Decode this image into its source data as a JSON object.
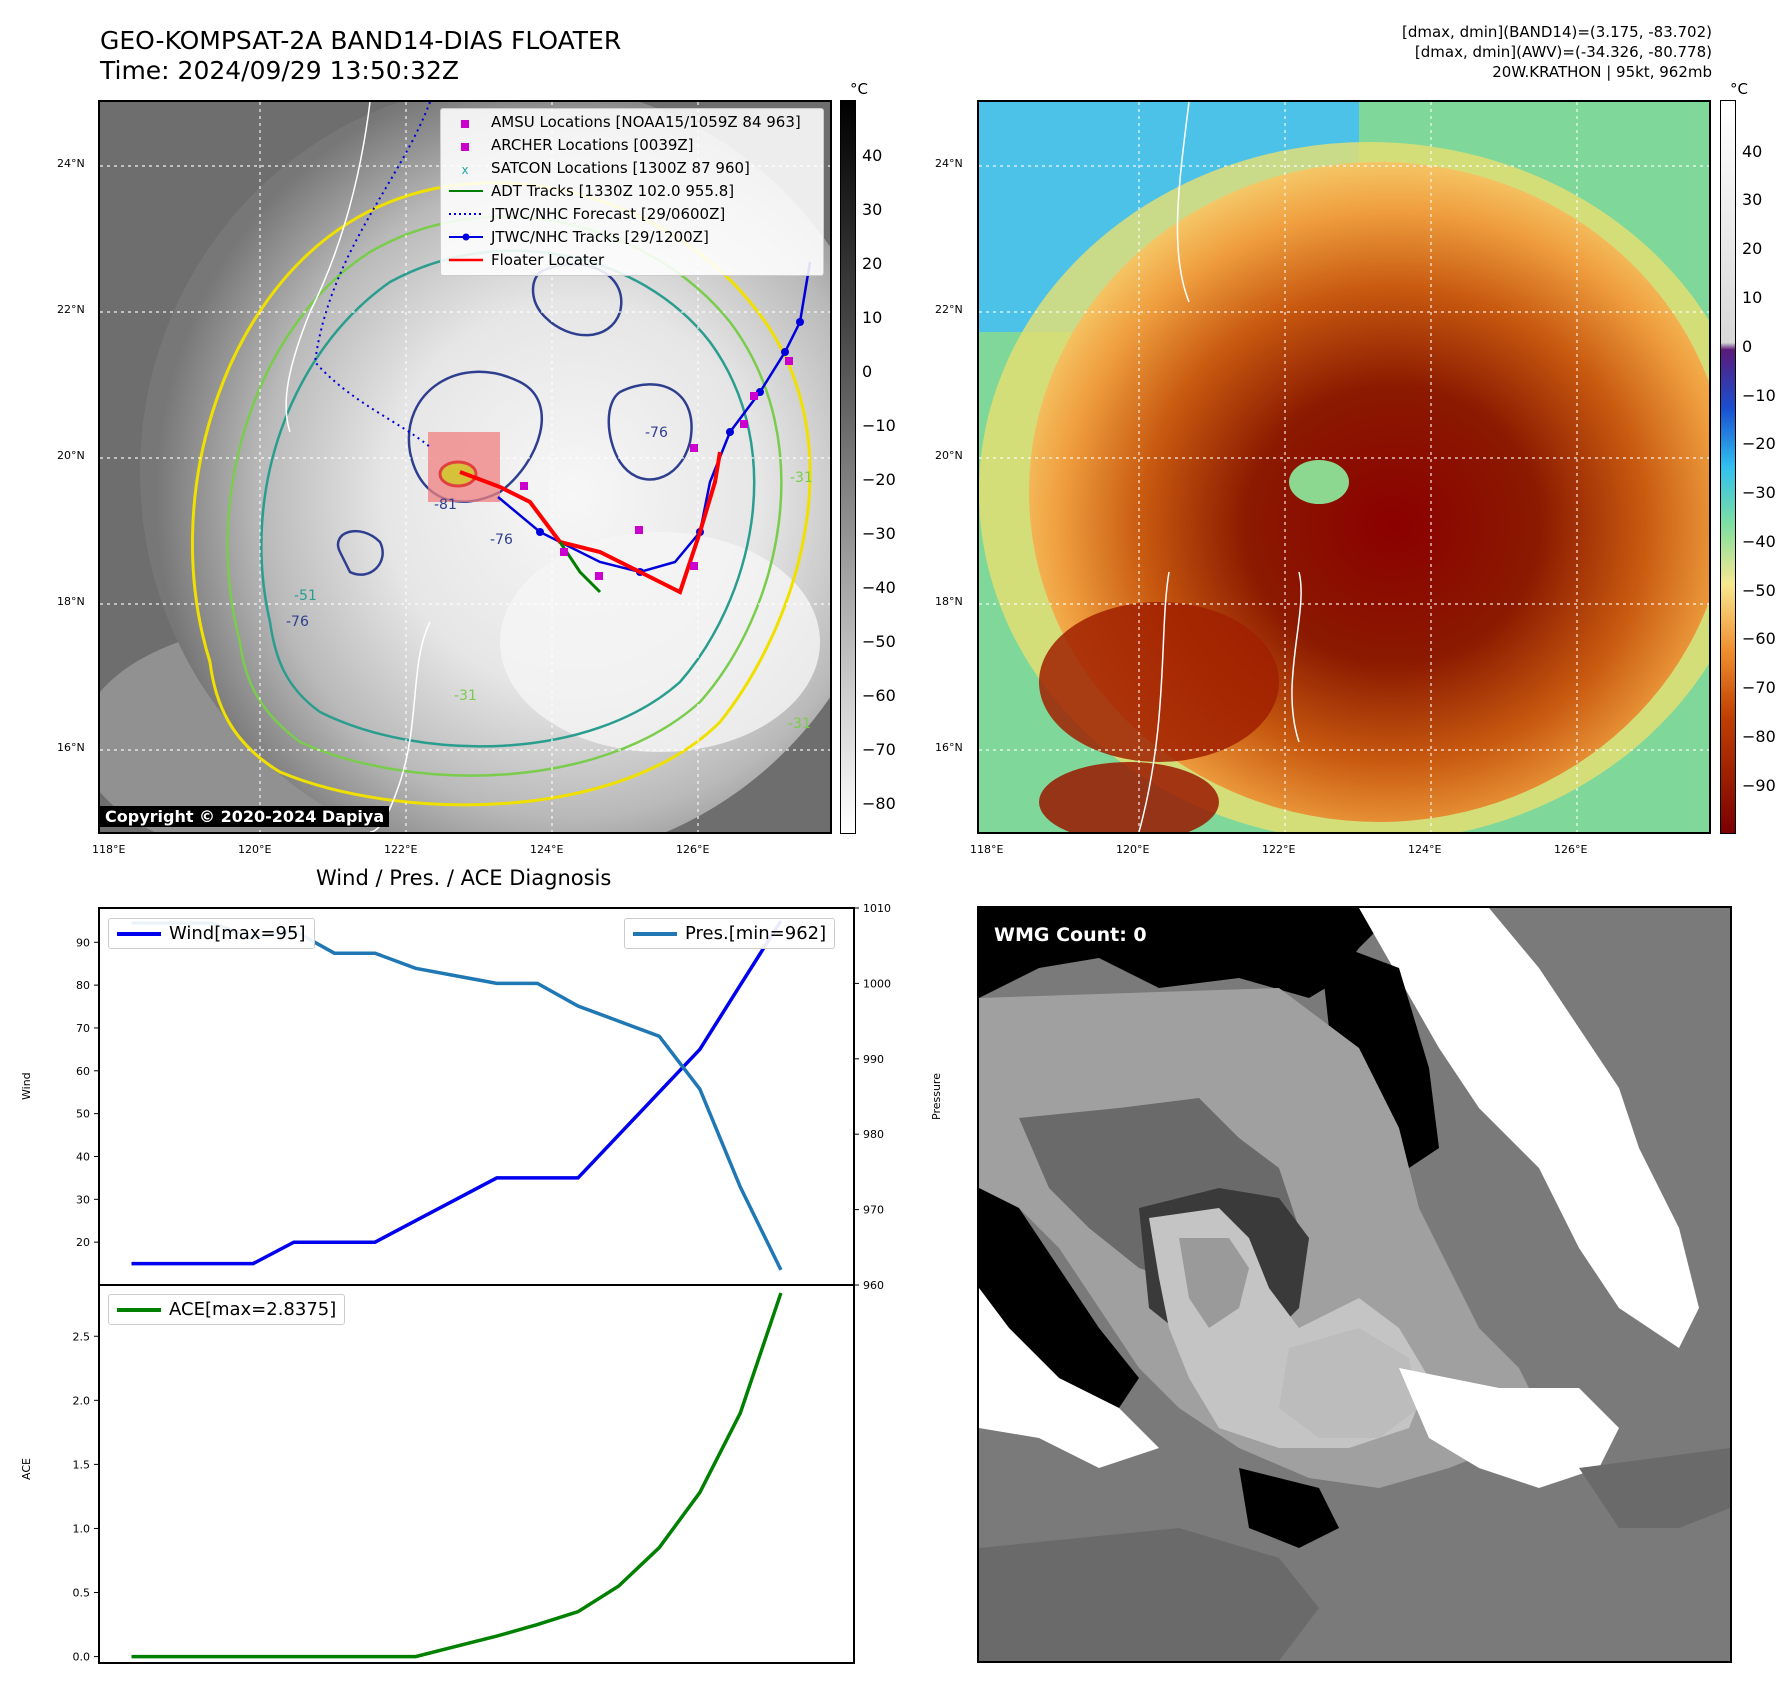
{
  "header": {
    "title_line1": "GEO-KOMPSAT-2A BAND14-DIAS FLOATER",
    "title_line2": "Time: 2024/09/29 13:50:32Z",
    "info_line1": "[dmax, dmin](BAND14)=(3.175, -83.702)",
    "info_line2": "[dmax, dmin](AWV)=(-34.326, -80.778)",
    "info_line3": "20W.KRATHON | 95kt, 962mb"
  },
  "map": {
    "lon_ticks": [
      "118°E",
      "120°E",
      "122°E",
      "124°E",
      "126°E"
    ],
    "lat_ticks": [
      "24°N",
      "22°N",
      "20°N",
      "18°N",
      "16°N"
    ],
    "copyright": "Copyright © 2020-2024 Dapiya",
    "contour_labels": [
      "-81",
      "-76",
      "-76",
      "-76",
      "-51",
      "-31",
      "-31",
      "-31"
    ],
    "colors": {
      "ocean_gray": "#6f6f6f",
      "cloud_white": "#f2f2f2",
      "track_blue": "#0000dd",
      "locator_red": "#ff0000",
      "adt_green": "#007f00"
    }
  },
  "legend": {
    "amsu": "AMSU Locations [NOAA15/1059Z 84 963]",
    "archer": "ARCHER Locations [0039Z]",
    "satcon": "SATCON Locations [1300Z 87 960]",
    "adt": "ADT Tracks [1330Z 102.0 955.8]",
    "forecast": "JTWC/NHC Forecast [29/0600Z]",
    "tracks": "JTWC/NHC Tracks [29/1200Z]",
    "floater": "Floater Locater"
  },
  "colorbar_left": {
    "unit": "°C",
    "ticks": [
      "40",
      "30",
      "20",
      "10",
      "0",
      "−10",
      "−20",
      "−30",
      "−40",
      "−50",
      "−60",
      "−70",
      "−80"
    ]
  },
  "colorbar_right": {
    "unit": "°C",
    "ticks": [
      "40",
      "30",
      "20",
      "10",
      "0",
      "−10",
      "−20",
      "−30",
      "−40",
      "−50",
      "−60",
      "−70",
      "−80",
      "−90"
    ]
  },
  "diag": {
    "title": "Wind / Pres. / ACE Diagnosis",
    "wind_ylabel": "Wind",
    "pres_ylabel": "Pressure",
    "ace_ylabel": "ACE",
    "wind_legend": "Wind[max=95]",
    "pres_legend": "Pres.[min=962]",
    "ace_legend": "ACE[max=2.8375]",
    "wind_ticks": [
      "20",
      "30",
      "40",
      "50",
      "60",
      "70",
      "80",
      "90"
    ],
    "pres_ticks": [
      "960",
      "970",
      "980",
      "990",
      "1000",
      "1010"
    ],
    "ace_ticks": [
      "0.0",
      "0.5",
      "1.0",
      "1.5",
      "2.0",
      "2.5"
    ]
  },
  "wmg": {
    "label": "WMG Count: 0"
  },
  "chart_data": {
    "type": "line",
    "title": "Wind / Pres. / ACE Diagnosis",
    "x": [
      0,
      1,
      2,
      3,
      4,
      5,
      6,
      7,
      8,
      9,
      10,
      11,
      12,
      13,
      14,
      15,
      16
    ],
    "series": [
      {
        "name": "Wind[max=95]",
        "axis": "wind",
        "color": "#0000ee",
        "values": [
          15,
          15,
          15,
          15,
          20,
          20,
          20,
          25,
          30,
          35,
          35,
          35,
          45,
          55,
          65,
          80,
          95
        ]
      },
      {
        "name": "Pres.[min=962]",
        "axis": "pressure",
        "color": "#1f77b4",
        "values": [
          1008,
          1008,
          1008,
          1006,
          1007,
          1004,
          1004,
          1002,
          1001,
          1000,
          1000,
          997,
          995,
          993,
          986,
          973,
          962
        ]
      },
      {
        "name": "ACE[max=2.8375]",
        "axis": "ace",
        "color": "#008000",
        "values": [
          0,
          0,
          0,
          0,
          0,
          0,
          0,
          0,
          0.08,
          0.16,
          0.25,
          0.35,
          0.55,
          0.85,
          1.28,
          1.9,
          2.8375
        ]
      }
    ],
    "wind_ylim": [
      10,
      98
    ],
    "pressure_ylim": [
      960,
      1010
    ],
    "ace_ylim": [
      -0.05,
      2.9
    ]
  }
}
